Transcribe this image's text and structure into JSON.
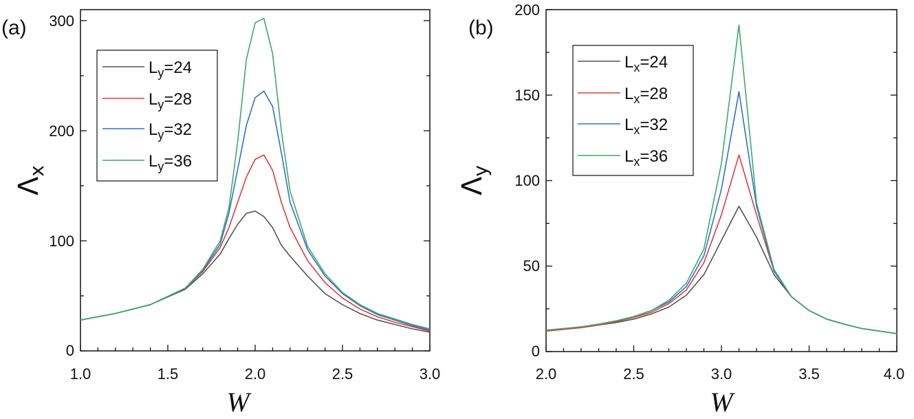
{
  "chart_data": [
    {
      "type": "line",
      "panel_label": "(a)",
      "xlabel": "W",
      "ylabel": "Λx",
      "ylabel_main": "Λ",
      "ylabel_sub": "x",
      "xlim": [
        1.0,
        3.0
      ],
      "ylim": [
        0,
        310
      ],
      "xticks": [
        1.0,
        1.5,
        2.0,
        2.5,
        3.0
      ],
      "xtick_labels": [
        "1.0",
        "1.5",
        "2.0",
        "2.5",
        "3.0"
      ],
      "yticks": [
        0,
        100,
        200,
        300
      ],
      "ytick_labels": [
        "0",
        "100",
        "200",
        "300"
      ],
      "legend_position": "upper-left",
      "x": [
        1.0,
        1.2,
        1.4,
        1.6,
        1.7,
        1.8,
        1.85,
        1.9,
        1.95,
        2.0,
        2.05,
        2.1,
        2.15,
        2.2,
        2.3,
        2.4,
        2.5,
        2.6,
        2.7,
        2.8,
        2.9,
        3.0
      ],
      "series": [
        {
          "name": "Ly=24",
          "label_main": "L",
          "label_sub": "y",
          "label_tail": "=24",
          "color": "#555555",
          "values": [
            28,
            34,
            42,
            56,
            70,
            88,
            102,
            115,
            125,
            127,
            122,
            112,
            96,
            86,
            68,
            52,
            42,
            34,
            28,
            24,
            20,
            17
          ]
        },
        {
          "name": "Ly=28",
          "label_main": "L",
          "label_sub": "y",
          "label_tail": "=28",
          "color": "#e8383d",
          "values": [
            28,
            34,
            42,
            57,
            72,
            94,
            112,
            135,
            158,
            174,
            178,
            164,
            135,
            112,
            82,
            62,
            48,
            38,
            31,
            26,
            22,
            18
          ]
        },
        {
          "name": "Ly=32",
          "label_main": "L",
          "label_sub": "y",
          "label_tail": "=32",
          "color": "#2f6fd4",
          "values": [
            28,
            34,
            42,
            57,
            73,
            97,
            125,
            165,
            205,
            230,
            236,
            222,
            180,
            135,
            92,
            68,
            52,
            41,
            33,
            28,
            23,
            19
          ]
        },
        {
          "name": "Ly=36",
          "label_main": "L",
          "label_sub": "y",
          "label_tail": "=36",
          "color": "#3aaa6a",
          "values": [
            28,
            34,
            42,
            57,
            74,
            100,
            130,
            190,
            265,
            298,
            302,
            270,
            200,
            145,
            95,
            70,
            53,
            42,
            34,
            29,
            24,
            20
          ]
        }
      ]
    },
    {
      "type": "line",
      "panel_label": "(b)",
      "xlabel": "W",
      "ylabel": "Λy",
      "ylabel_main": "Λ",
      "ylabel_sub": "y",
      "xlim": [
        2.0,
        4.0
      ],
      "ylim": [
        0,
        200
      ],
      "xticks": [
        2.0,
        2.5,
        3.0,
        3.5,
        4.0
      ],
      "xtick_labels": [
        "2.0",
        "2.5",
        "3.0",
        "3.5",
        "4.0"
      ],
      "yticks": [
        0,
        50,
        100,
        150,
        200
      ],
      "ytick_labels": [
        "0",
        "50",
        "100",
        "150",
        "200"
      ],
      "legend_position": "upper-left",
      "x": [
        2.0,
        2.1,
        2.2,
        2.3,
        2.4,
        2.5,
        2.6,
        2.7,
        2.8,
        2.9,
        3.0,
        3.1,
        3.2,
        3.3,
        3.4,
        3.5,
        3.6,
        3.7,
        3.8,
        3.9,
        4.0
      ],
      "series": [
        {
          "name": "Lx=24",
          "label_main": "L",
          "label_sub": "x",
          "label_tail": "=24",
          "color": "#555555",
          "values": [
            12,
            13,
            14,
            15.5,
            17,
            19,
            22,
            26,
            33,
            45,
            65,
            85,
            67,
            45,
            32,
            24,
            19,
            16,
            13.5,
            12,
            10.5
          ]
        },
        {
          "name": "Lx=28",
          "label_main": "L",
          "label_sub": "x",
          "label_tail": "=28",
          "color": "#e8383d",
          "values": [
            12,
            13,
            14,
            15.5,
            17.5,
            20,
            23,
            28,
            36,
            52,
            80,
            115,
            80,
            47,
            32,
            24,
            19,
            16,
            13.5,
            12,
            10.5
          ]
        },
        {
          "name": "Lx=32",
          "label_main": "L",
          "label_sub": "x",
          "label_tail": "=32",
          "color": "#2f6fd4",
          "values": [
            12.5,
            13.5,
            14.5,
            16,
            18,
            20.5,
            24,
            29,
            38,
            56,
            95,
            152,
            85,
            47,
            32,
            24,
            19,
            16,
            13.5,
            12,
            10.5
          ]
        },
        {
          "name": "Lx=36",
          "label_main": "L",
          "label_sub": "x",
          "label_tail": "=36",
          "color": "#3aaa6a",
          "values": [
            12.5,
            13.5,
            14.5,
            16,
            18,
            20.5,
            24,
            30,
            40,
            60,
            110,
            191,
            87,
            48,
            32,
            24,
            19,
            16,
            13.5,
            12,
            10.5
          ]
        }
      ]
    }
  ]
}
